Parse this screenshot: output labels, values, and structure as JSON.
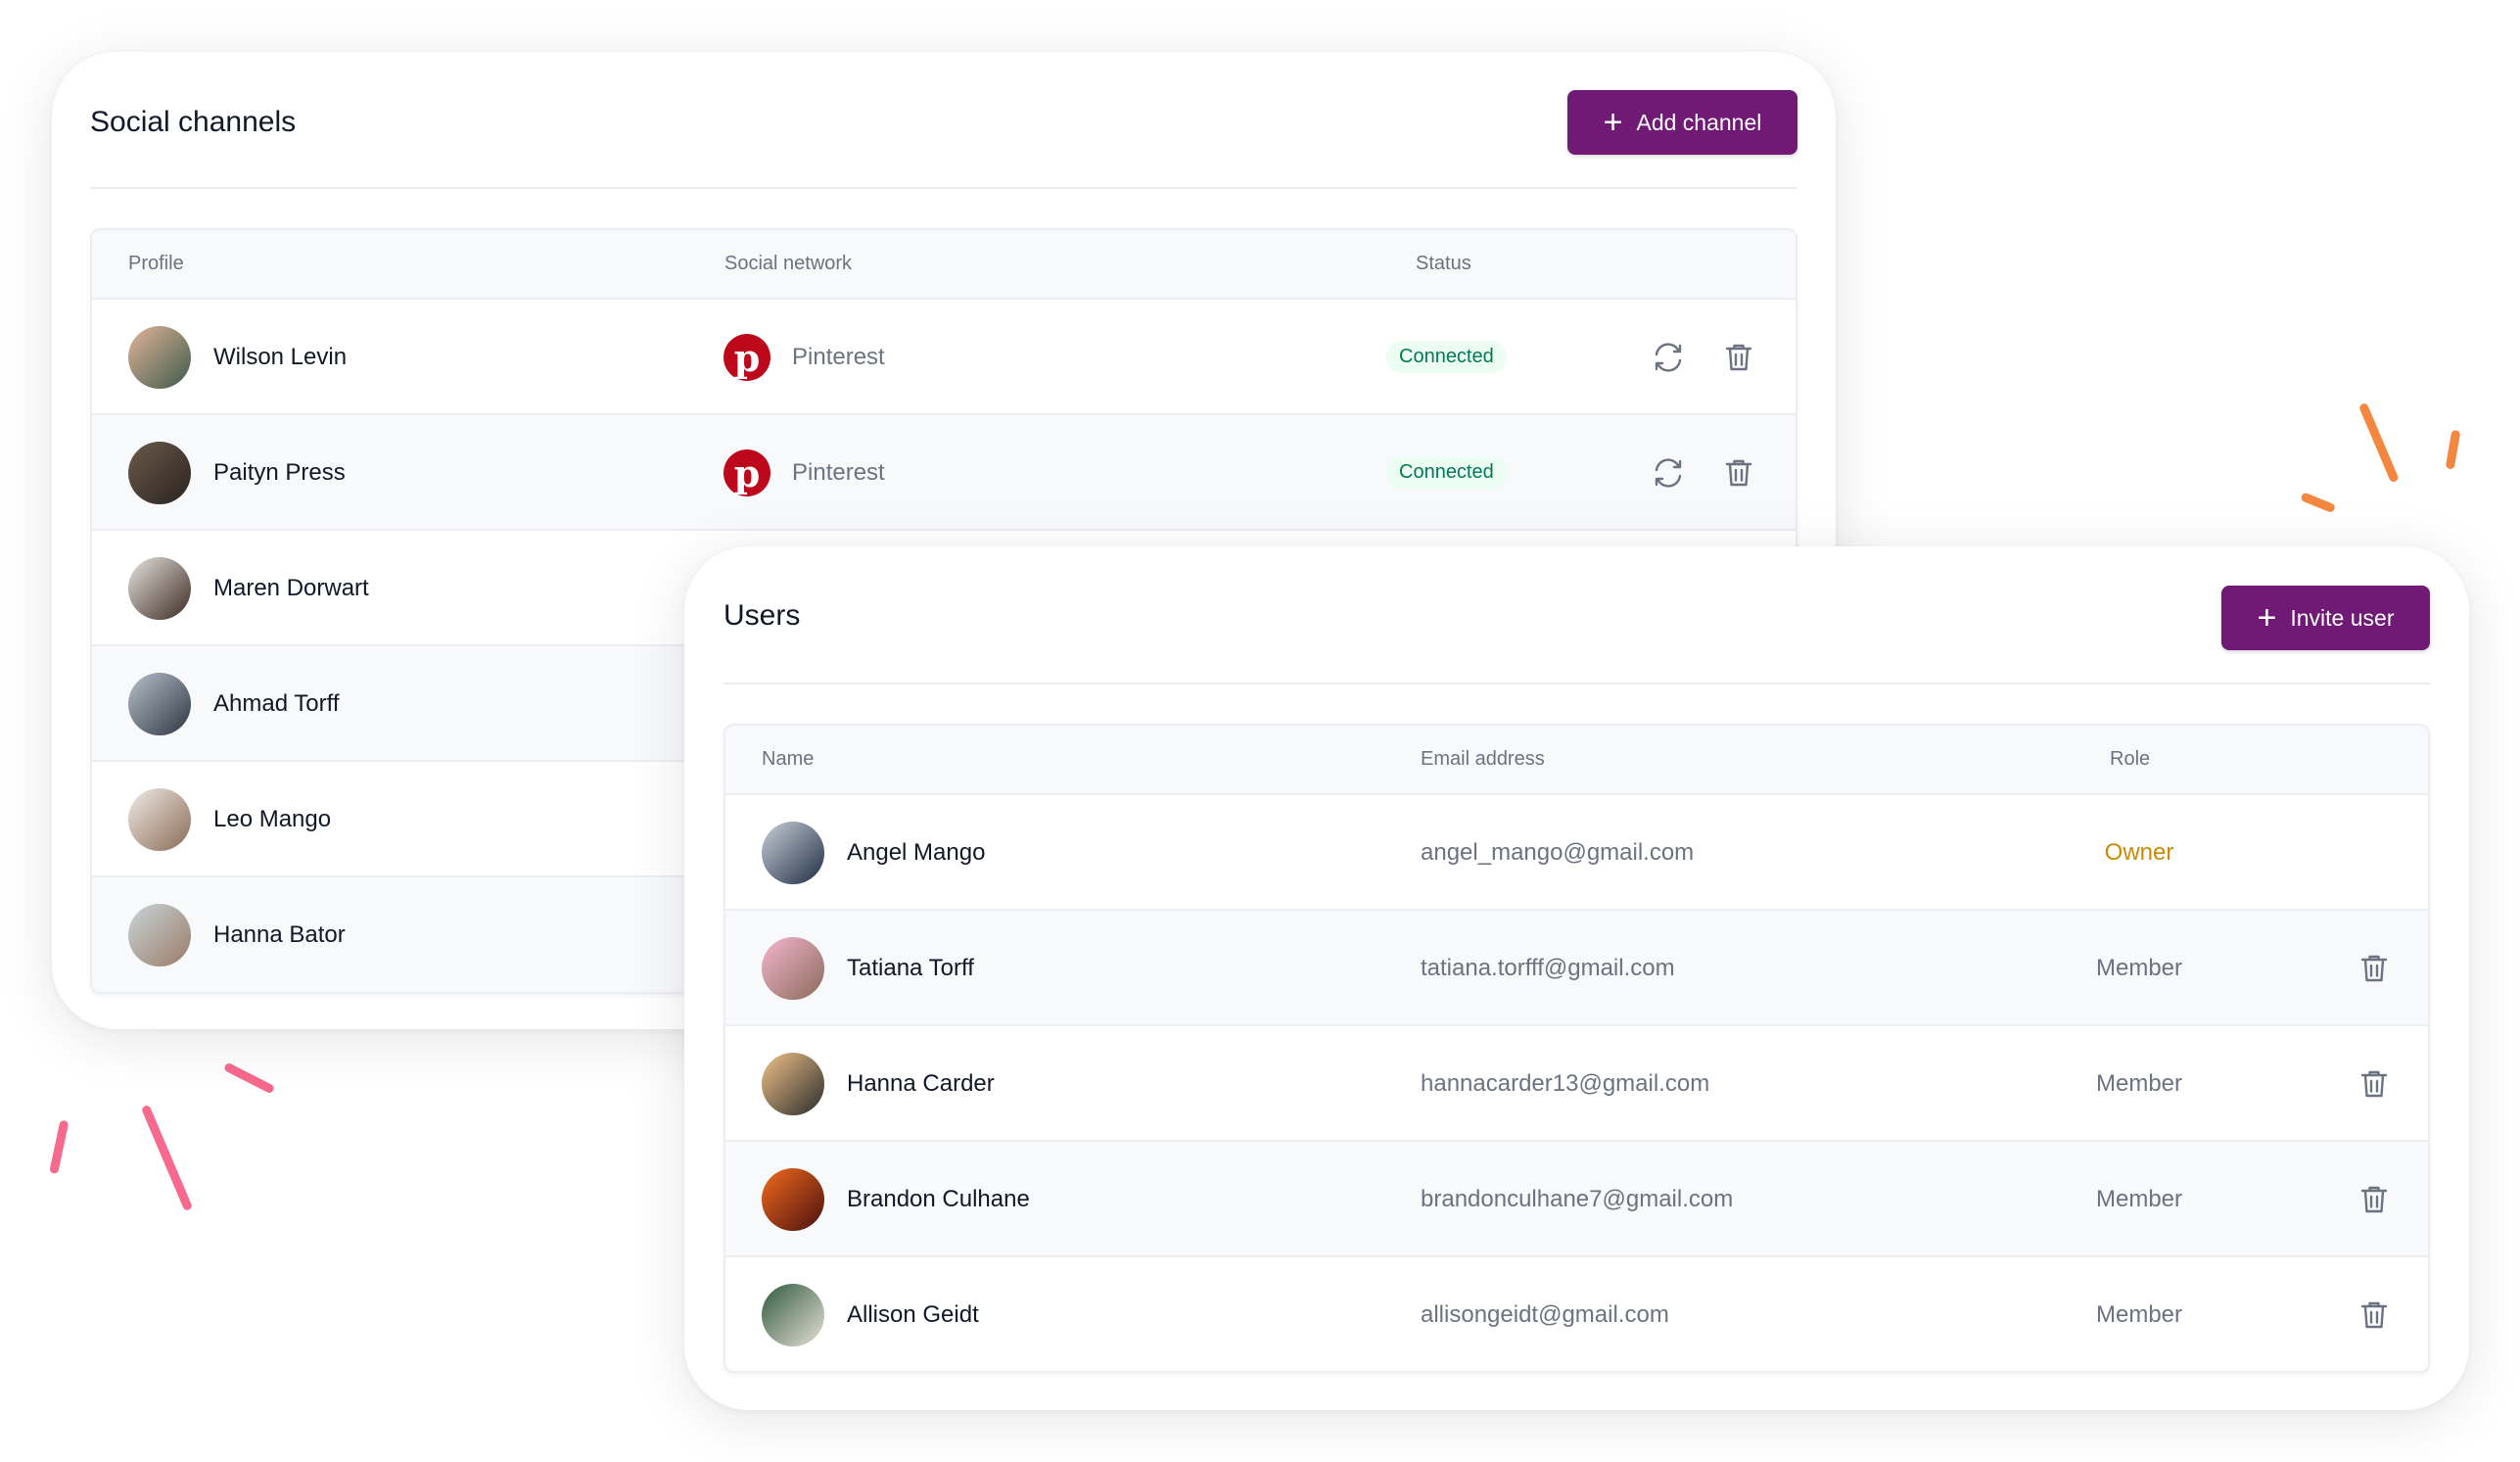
{
  "social": {
    "title": "Social channels",
    "add_label": "Add channel",
    "columns": [
      "Profile",
      "Social network",
      "Status"
    ],
    "rows": [
      {
        "name": "Wilson Levin",
        "network": "Pinterest",
        "status": "Connected"
      },
      {
        "name": "Paityn Press",
        "network": "Pinterest",
        "status": "Connected"
      },
      {
        "name": "Maren Dorwart"
      },
      {
        "name": "Ahmad Torff"
      },
      {
        "name": "Leo Mango"
      },
      {
        "name": "Hanna Bator"
      }
    ]
  },
  "users": {
    "title": "Users",
    "invite_label": "Invite user",
    "columns": [
      "Name",
      "Email address",
      "Role"
    ],
    "rows": [
      {
        "name": "Angel Mango",
        "email": "angel_mango@gmail.com",
        "role": "Owner"
      },
      {
        "name": "Tatiana Torff",
        "email": "tatiana.torfff@gmail.com",
        "role": "Member"
      },
      {
        "name": "Hanna Carder",
        "email": "hannacarder13@gmail.com",
        "role": "Member"
      },
      {
        "name": "Brandon Culhane",
        "email": "brandonculhane7@gmail.com",
        "role": "Member"
      },
      {
        "name": "Allison Geidt",
        "email": "allisongeidt@gmail.com",
        "role": "Member"
      }
    ]
  },
  "colors": {
    "brand": "#701a75",
    "connected": "#047857",
    "owner": "#ca8a04",
    "pinterest": "#bd081c"
  }
}
